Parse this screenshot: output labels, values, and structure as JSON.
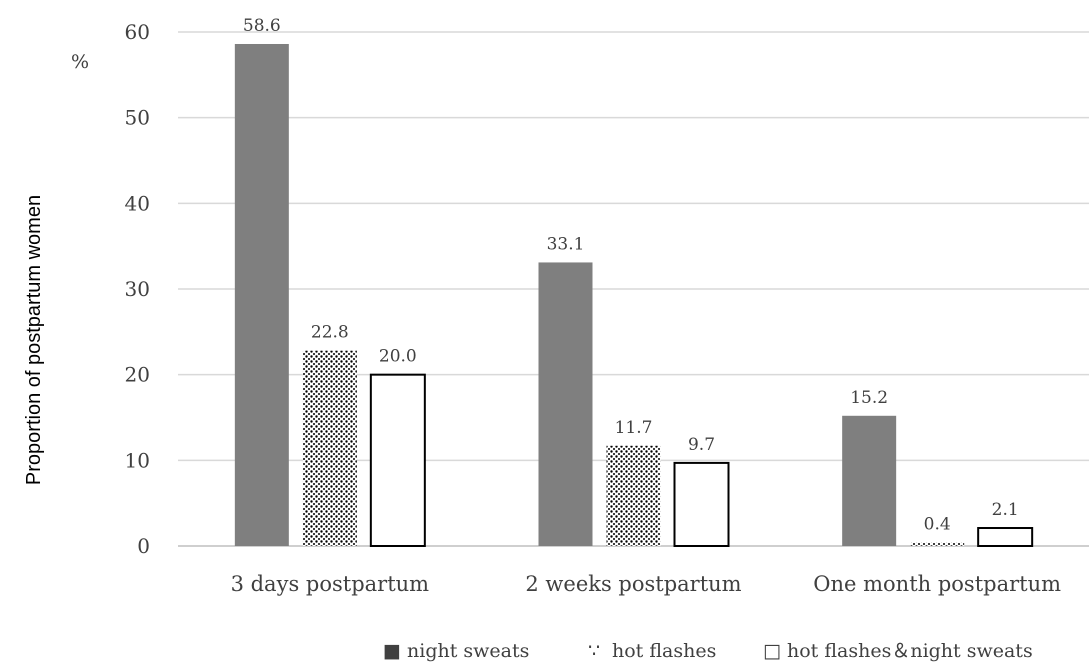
{
  "chart_data": {
    "type": "bar",
    "ylabel": "Proportion of postpartum women",
    "yunit": "%",
    "ylim": [
      0,
      60
    ],
    "yticks": [
      0,
      10,
      20,
      30,
      40,
      50,
      60
    ],
    "grid": true,
    "legend_position": "bottom",
    "categories": [
      "3 days postpartum",
      "2 weeks postpartum",
      "One month postpartum"
    ],
    "series": [
      {
        "name": "night sweats",
        "values": [
          58.6,
          33.1,
          15.2
        ],
        "labels": [
          "58.6",
          "33.1",
          "15.2"
        ],
        "fill": "#7f7f7f",
        "pattern": "solid"
      },
      {
        "name": "hot flashes",
        "values": [
          22.8,
          11.7,
          0.4
        ],
        "labels": [
          "22.8",
          "11.7",
          "0.4"
        ],
        "fill": "#000000",
        "pattern": "dots"
      },
      {
        "name": "hot flashes＆night sweats",
        "values": [
          20.0,
          9.7,
          2.1
        ],
        "labels": [
          "20.0",
          "9.7",
          "2.1"
        ],
        "fill": "#ffffff",
        "pattern": "outline"
      }
    ],
    "legend_markers": [
      "■",
      "∵",
      "□"
    ],
    "colors": {
      "text": "#404040",
      "grid": "#d9d9d9",
      "axis": "#bfbfbf"
    }
  }
}
